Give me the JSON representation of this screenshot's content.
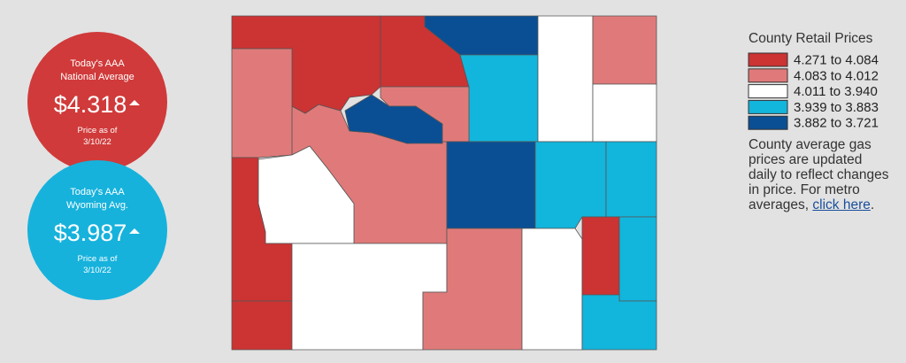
{
  "badges": [
    {
      "title_line1": "Today's AAA",
      "title_line2": "National Average",
      "price": "$4.318",
      "date_line1": "Price as of",
      "date_line2": "3/10/22",
      "color": "#d03a3a"
    },
    {
      "title_line1": "Today's AAA",
      "title_line2": "Wyoming Avg.",
      "price": "$3.987",
      "date_line1": "Price as of",
      "date_line2": "3/10/22",
      "color": "#16b2dc"
    }
  ],
  "legend": {
    "title": "County Retail Prices",
    "items": [
      {
        "label": "4.271 to 4.084",
        "color": "#cc3333"
      },
      {
        "label": "4.083 to 4.012",
        "color": "#e07a7a"
      },
      {
        "label": "4.011 to 3.940",
        "color": "#ffffff"
      },
      {
        "label": "3.939 to 3.883",
        "color": "#12b5dc"
      },
      {
        "label": "3.882 to 3.721",
        "color": "#0a4f94"
      }
    ]
  },
  "note": {
    "text": "County average gas prices are updated daily to reflect changes in price. For metro averages, ",
    "link": "click here",
    "end": "."
  }
}
